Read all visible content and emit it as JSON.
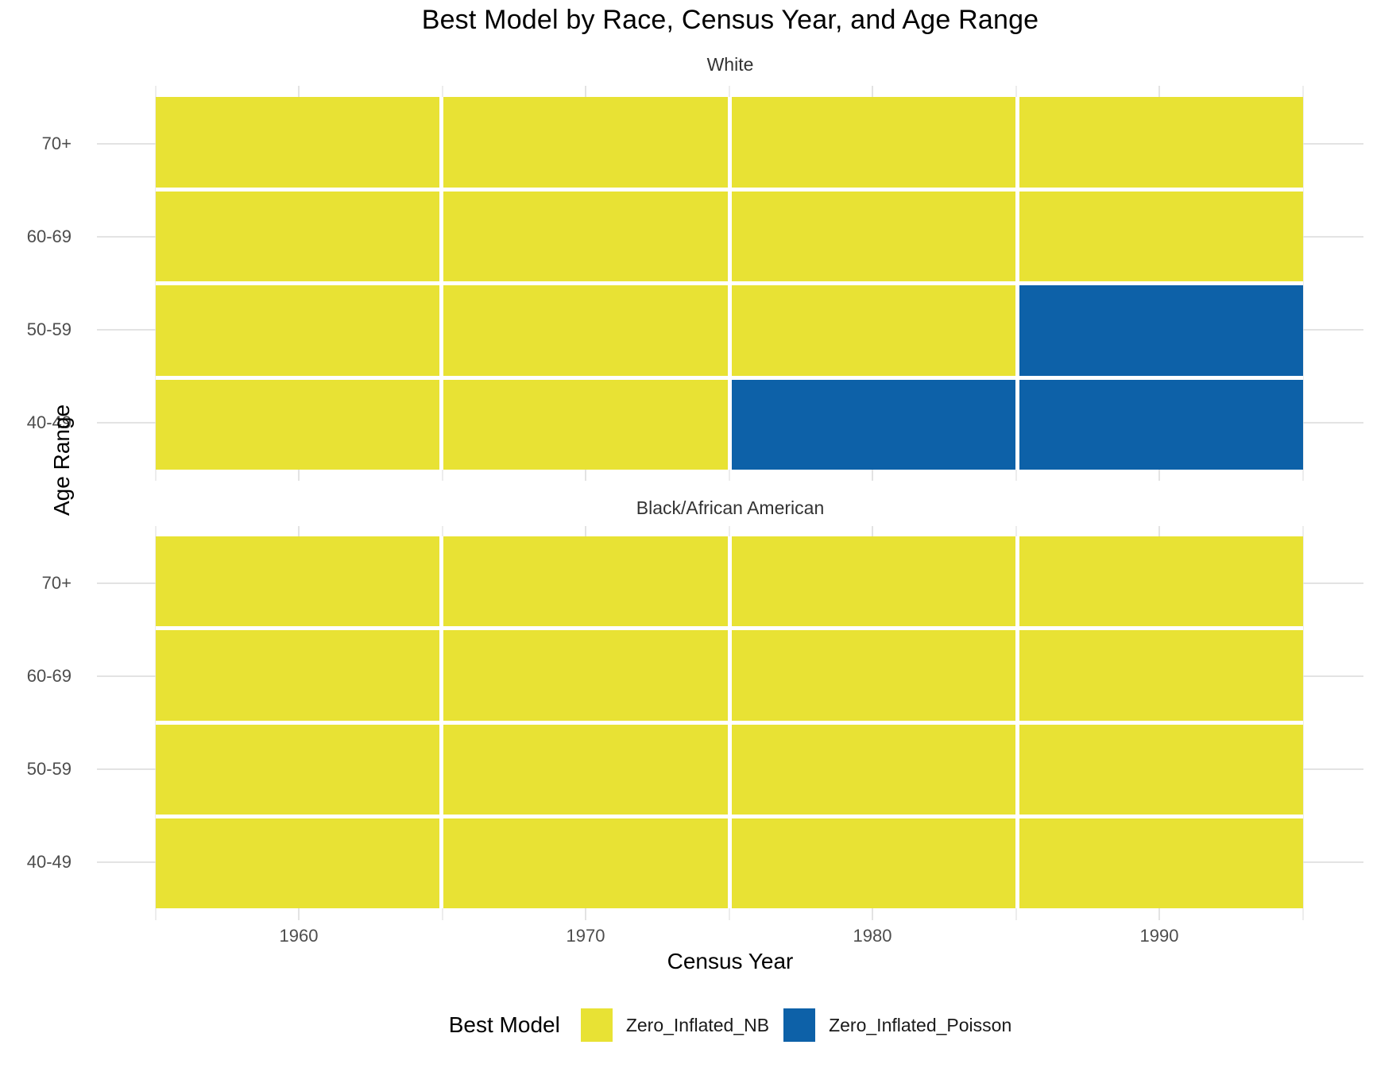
{
  "chart_data": {
    "type": "heatmap",
    "title": "Best Model by Race, Census Year, and Age Range",
    "xlabel": "Census Year",
    "ylabel": "Age Range",
    "x_categories": [
      "1960",
      "1970",
      "1980",
      "1990"
    ],
    "y_categories_top_to_bottom": [
      "70+",
      "60-69",
      "50-59",
      "40-49"
    ],
    "facets": [
      {
        "label": "White",
        "values_by_row": [
          [
            "Zero_Inflated_NB",
            "Zero_Inflated_NB",
            "Zero_Inflated_NB",
            "Zero_Inflated_NB"
          ],
          [
            "Zero_Inflated_NB",
            "Zero_Inflated_NB",
            "Zero_Inflated_NB",
            "Zero_Inflated_NB"
          ],
          [
            "Zero_Inflated_NB",
            "Zero_Inflated_NB",
            "Zero_Inflated_NB",
            "Zero_Inflated_Poisson"
          ],
          [
            "Zero_Inflated_NB",
            "Zero_Inflated_NB",
            "Zero_Inflated_Poisson",
            "Zero_Inflated_Poisson"
          ]
        ]
      },
      {
        "label": "Black/African American",
        "values_by_row": [
          [
            "Zero_Inflated_NB",
            "Zero_Inflated_NB",
            "Zero_Inflated_NB",
            "Zero_Inflated_NB"
          ],
          [
            "Zero_Inflated_NB",
            "Zero_Inflated_NB",
            "Zero_Inflated_NB",
            "Zero_Inflated_NB"
          ],
          [
            "Zero_Inflated_NB",
            "Zero_Inflated_NB",
            "Zero_Inflated_NB",
            "Zero_Inflated_NB"
          ],
          [
            "Zero_Inflated_NB",
            "Zero_Inflated_NB",
            "Zero_Inflated_NB",
            "Zero_Inflated_NB"
          ]
        ]
      }
    ],
    "legend": {
      "title": "Best Model",
      "position": "bottom",
      "entries": [
        {
          "label": "Zero_Inflated_NB",
          "color": "#e8e234"
        },
        {
          "label": "Zero_Inflated_Poisson",
          "color": "#0d61a8"
        }
      ]
    },
    "grid": true,
    "colors": {
      "background": "#ffffff",
      "grid_major": "#e3e3e3",
      "grid_minor": "#ededed",
      "tick_text": "#4d4d4d",
      "strip_text": "#333333"
    }
  }
}
